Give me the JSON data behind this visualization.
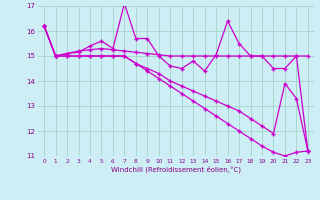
{
  "xlabel": "Windchill (Refroidissement éolien,°C)",
  "bg_color": "#cdeef5",
  "grid_color": "#aad8cc",
  "line_color": "#cc00cc",
  "x": [
    0,
    1,
    2,
    3,
    4,
    5,
    6,
    7,
    8,
    9,
    10,
    11,
    12,
    13,
    14,
    15,
    16,
    17,
    18,
    19,
    20,
    21,
    22,
    23
  ],
  "series1": [
    16.2,
    15.0,
    15.1,
    15.15,
    15.4,
    15.6,
    15.3,
    17.1,
    15.7,
    15.7,
    15.0,
    14.6,
    14.5,
    14.8,
    14.4,
    15.05,
    16.4,
    15.5,
    15.0,
    15.0,
    14.5,
    14.5,
    15.0,
    11.2
  ],
  "series2": [
    16.2,
    15.0,
    15.1,
    15.2,
    15.25,
    15.3,
    15.25,
    15.2,
    15.15,
    15.1,
    15.05,
    15.0,
    15.0,
    15.0,
    15.0,
    15.0,
    15.0,
    15.0,
    15.0,
    15.0,
    15.0,
    15.0,
    15.0,
    15.0
  ],
  "series3": [
    16.2,
    15.0,
    15.0,
    15.0,
    15.0,
    15.0,
    15.0,
    15.0,
    14.7,
    14.5,
    14.3,
    14.0,
    13.8,
    13.6,
    13.4,
    13.2,
    13.0,
    12.8,
    12.5,
    12.2,
    11.9,
    13.9,
    13.3,
    11.2
  ],
  "series4": [
    16.2,
    15.0,
    15.0,
    15.0,
    15.0,
    15.0,
    15.0,
    15.0,
    14.7,
    14.4,
    14.1,
    13.8,
    13.5,
    13.2,
    12.9,
    12.6,
    12.3,
    12.0,
    11.7,
    11.4,
    11.15,
    11.0,
    11.15,
    11.2
  ],
  "ylim": [
    11,
    17
  ],
  "xlim": [
    -0.5,
    23.5
  ],
  "yticks": [
    11,
    12,
    13,
    14,
    15,
    16,
    17
  ],
  "xticks": [
    0,
    1,
    2,
    3,
    4,
    5,
    6,
    7,
    8,
    9,
    10,
    11,
    12,
    13,
    14,
    15,
    16,
    17,
    18,
    19,
    20,
    21,
    22,
    23
  ]
}
